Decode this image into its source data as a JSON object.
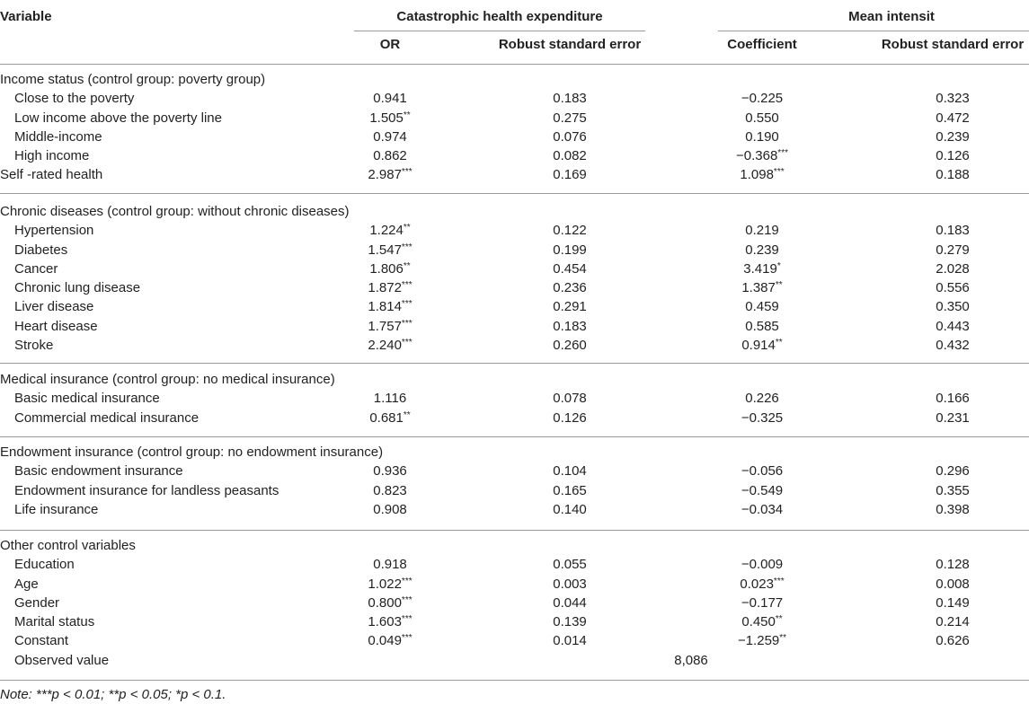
{
  "header": {
    "variable": "Variable",
    "group1": "Catastrophic health expenditure",
    "group2": "Mean intensit",
    "sub": [
      "OR",
      "Robust standard error",
      "Coefficient",
      "Robust standard error"
    ]
  },
  "sections": [
    {
      "title": "Income status (control group: poverty group)",
      "rows": [
        {
          "label": "Close to the poverty",
          "indent": true,
          "or": "0.941",
          "or_sig": "",
          "se1": "0.183",
          "coef": "−0.225",
          "coef_sig": "",
          "se2": "0.323"
        },
        {
          "label": "Low income above the poverty line",
          "indent": true,
          "or": "1.505",
          "or_sig": "**",
          "se1": "0.275",
          "coef": "0.550",
          "coef_sig": "",
          "se2": "0.472"
        },
        {
          "label": "Middle-income",
          "indent": true,
          "or": "0.974",
          "or_sig": "",
          "se1": "0.076",
          "coef": "0.190",
          "coef_sig": "",
          "se2": "0.239"
        },
        {
          "label": "High income",
          "indent": true,
          "or": "0.862",
          "or_sig": "",
          "se1": "0.082",
          "coef": "−0.368",
          "coef_sig": "***",
          "se2": "0.126"
        },
        {
          "label": "Self -rated health",
          "indent": false,
          "or": "2.987",
          "or_sig": "***",
          "se1": "0.169",
          "coef": "1.098",
          "coef_sig": "***",
          "se2": "0.188"
        }
      ]
    },
    {
      "title": "Chronic diseases (control group: without chronic diseases)",
      "rows": [
        {
          "label": "Hypertension",
          "indent": true,
          "or": "1.224",
          "or_sig": "**",
          "se1": "0.122",
          "coef": "0.219",
          "coef_sig": "",
          "se2": "0.183"
        },
        {
          "label": "Diabetes",
          "indent": true,
          "or": "1.547",
          "or_sig": "***",
          "se1": "0.199",
          "coef": "0.239",
          "coef_sig": "",
          "se2": "0.279"
        },
        {
          "label": "Cancer",
          "indent": true,
          "or": "1.806",
          "or_sig": "**",
          "se1": "0.454",
          "coef": "3.419",
          "coef_sig": "*",
          "se2": "2.028"
        },
        {
          "label": "Chronic lung disease",
          "indent": true,
          "or": "1.872",
          "or_sig": "***",
          "se1": "0.236",
          "coef": "1.387",
          "coef_sig": "**",
          "se2": "0.556"
        },
        {
          "label": "Liver disease",
          "indent": true,
          "or": "1.814",
          "or_sig": "***",
          "se1": "0.291",
          "coef": "0.459",
          "coef_sig": "",
          "se2": "0.350"
        },
        {
          "label": "Heart disease",
          "indent": true,
          "or": "1.757",
          "or_sig": "***",
          "se1": "0.183",
          "coef": "0.585",
          "coef_sig": "",
          "se2": "0.443"
        },
        {
          "label": "Stroke",
          "indent": true,
          "or": "2.240",
          "or_sig": "***",
          "se1": "0.260",
          "coef": "0.914",
          "coef_sig": "**",
          "se2": "0.432"
        }
      ]
    },
    {
      "title": "Medical insurance (control group: no medical insurance)",
      "rows": [
        {
          "label": "Basic medical insurance",
          "indent": true,
          "or": "1.116",
          "or_sig": "",
          "se1": "0.078",
          "coef": "0.226",
          "coef_sig": "",
          "se2": "0.166"
        },
        {
          "label": "Commercial medical insurance",
          "indent": true,
          "or": "0.681",
          "or_sig": "**",
          "se1": "0.126",
          "coef": "−0.325",
          "coef_sig": "",
          "se2": "0.231"
        }
      ]
    },
    {
      "title": "Endowment insurance (control group: no endowment insurance)",
      "rows": [
        {
          "label": "Basic endowment insurance",
          "indent": true,
          "or": "0.936",
          "or_sig": "",
          "se1": "0.104",
          "coef": "−0.056",
          "coef_sig": "",
          "se2": "0.296"
        },
        {
          "label": "Endowment insurance for landless peasants",
          "indent": true,
          "or": "0.823",
          "or_sig": "",
          "se1": "0.165",
          "coef": "−0.549",
          "coef_sig": "",
          "se2": "0.355"
        },
        {
          "label": "Life insurance",
          "indent": true,
          "or": "0.908",
          "or_sig": "",
          "se1": "0.140",
          "coef": "−0.034",
          "coef_sig": "",
          "se2": "0.398"
        }
      ]
    },
    {
      "title": "Other control variables",
      "rows": [
        {
          "label": "Education",
          "indent": true,
          "or": "0.918",
          "or_sig": "",
          "se1": "0.055",
          "coef": "−0.009",
          "coef_sig": "",
          "se2": "0.128"
        },
        {
          "label": "Age",
          "indent": true,
          "or": "1.022",
          "or_sig": "***",
          "se1": "0.003",
          "coef": "0.023",
          "coef_sig": "***",
          "se2": "0.008"
        },
        {
          "label": "Gender",
          "indent": true,
          "or": "0.800",
          "or_sig": "***",
          "se1": "0.044",
          "coef": "−0.177",
          "coef_sig": "",
          "se2": "0.149"
        },
        {
          "label": "Marital status",
          "indent": true,
          "or": "1.603",
          "or_sig": "***",
          "se1": "0.139",
          "coef": "0.450",
          "coef_sig": "**",
          "se2": "0.214"
        },
        {
          "label": "Constant",
          "indent": true,
          "or": "0.049",
          "or_sig": "***",
          "se1": "0.014",
          "coef": "−1.259",
          "coef_sig": "**",
          "se2": "0.626"
        }
      ]
    }
  ],
  "observed": {
    "label": "Observed value",
    "value": "8,086"
  },
  "note": {
    "label": "Note:",
    "text": "***p < 0.01; **p < 0.05; *p < 0.1."
  }
}
